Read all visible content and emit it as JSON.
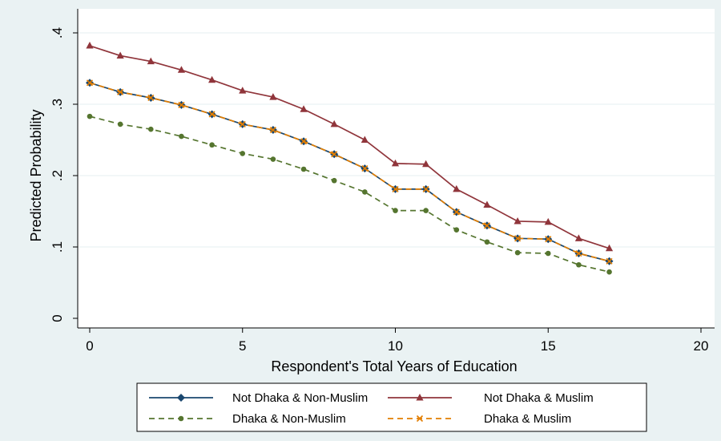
{
  "chart_data": {
    "type": "line",
    "xlabel": "Respondent's Total Years of Education",
    "ylabel": "Predicted Probability",
    "xlim": [
      0,
      20
    ],
    "ylim": [
      0,
      0.4
    ],
    "xticks": [
      0,
      5,
      10,
      15,
      20
    ],
    "xtick_labels": [
      "0",
      "5",
      "10",
      "15",
      "20"
    ],
    "yticks": [
      0,
      0.1,
      0.2,
      0.3,
      0.4
    ],
    "ytick_labels": [
      "0",
      ".1",
      ".2",
      ".3",
      ".4"
    ],
    "grid": true,
    "legend_position": "bottom",
    "x": [
      0,
      1,
      2,
      3,
      4,
      5,
      6,
      7,
      8,
      9,
      10,
      11,
      12,
      13,
      14,
      15,
      16,
      17
    ],
    "series": [
      {
        "name": "Not Dhaka & Non-Muslim",
        "color": "#1a476f",
        "marker": "diamond",
        "dash": "solid",
        "values": [
          0.33,
          0.317,
          0.309,
          0.299,
          0.286,
          0.272,
          0.264,
          0.248,
          0.23,
          0.21,
          0.181,
          0.181,
          0.149,
          0.13,
          0.112,
          0.111,
          0.091,
          0.08
        ]
      },
      {
        "name": "Not Dhaka & Muslim",
        "color": "#90353b",
        "marker": "triangle",
        "dash": "solid",
        "values": [
          0.382,
          0.368,
          0.36,
          0.348,
          0.334,
          0.319,
          0.31,
          0.293,
          0.272,
          0.25,
          0.217,
          0.216,
          0.181,
          0.159,
          0.136,
          0.135,
          0.112,
          0.098
        ]
      },
      {
        "name": "Dhaka & Non-Muslim",
        "color": "#55752f",
        "marker": "circle",
        "dash": "dashed",
        "values": [
          0.283,
          0.272,
          0.265,
          0.255,
          0.243,
          0.231,
          0.223,
          0.209,
          0.193,
          0.177,
          0.151,
          0.151,
          0.124,
          0.107,
          0.092,
          0.091,
          0.075,
          0.065
        ]
      },
      {
        "name": "Dhaka & Muslim",
        "color": "#e37e00",
        "marker": "x",
        "dash": "dashed",
        "values": [
          0.33,
          0.317,
          0.309,
          0.299,
          0.286,
          0.272,
          0.264,
          0.248,
          0.23,
          0.21,
          0.181,
          0.181,
          0.149,
          0.13,
          0.112,
          0.111,
          0.091,
          0.08
        ]
      }
    ]
  }
}
